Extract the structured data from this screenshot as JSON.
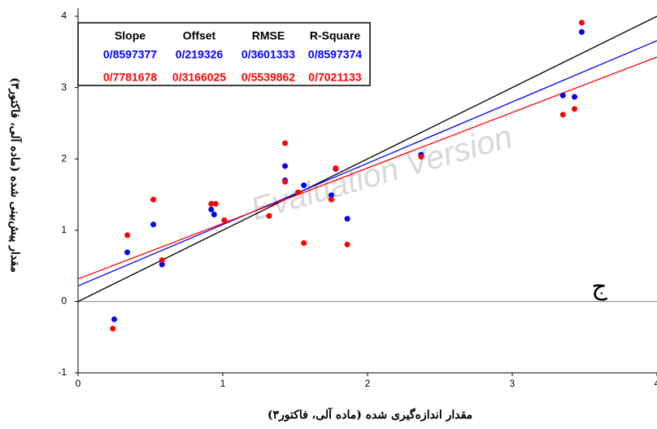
{
  "chart_data": {
    "type": "scatter",
    "x_label": "مقدار اندازه‌گیری شده (ماده آلی، فاکتور۳)",
    "y_label": "مقدار پیش‌بینی شده (ماده آلی، فاکتور۳)",
    "annotation": "ج",
    "watermark": "Evaluation Version",
    "xlim": [
      0,
      4
    ],
    "ylim": [
      -1,
      4
    ],
    "xticks": [
      0,
      1,
      2,
      3,
      4
    ],
    "yticks": [
      -1,
      0,
      1,
      2,
      3,
      4
    ],
    "series": [
      {
        "color": "#0000ff",
        "x": [
          0.25,
          0.34,
          0.52,
          0.58,
          0.92,
          0.94,
          1.43,
          1.43,
          1.56,
          1.75,
          1.78,
          1.86,
          2.37,
          3.35,
          3.43,
          3.48
        ],
        "values": [
          -0.25,
          0.69,
          1.08,
          0.52,
          1.29,
          1.22,
          1.9,
          1.7,
          1.63,
          1.49,
          1.86,
          1.16,
          2.06,
          2.89,
          2.87,
          3.78
        ]
      },
      {
        "color": "#ff0000",
        "x": [
          0.24,
          0.34,
          0.52,
          0.58,
          0.92,
          0.95,
          1.01,
          1.32,
          1.43,
          1.43,
          1.52,
          1.56,
          1.75,
          1.78,
          1.86,
          2.37,
          3.35,
          3.43,
          3.48
        ],
        "values": [
          -0.38,
          0.93,
          1.43,
          0.58,
          1.37,
          1.37,
          1.14,
          1.2,
          2.22,
          1.68,
          1.53,
          0.82,
          1.43,
          1.87,
          0.8,
          2.03,
          2.62,
          2.7,
          3.91
        ]
      }
    ],
    "stats": {
      "columns": [
        "Slope",
        "Offset",
        "RMSE",
        "R-Square"
      ],
      "rows": [
        {
          "color": "#0000ff",
          "values": [
            0.8597377,
            0.219326,
            0.3601333,
            0.8597374
          ],
          "value_labels": [
            "0/8597377",
            "0/219326",
            "0/3601333",
            "0/8597374"
          ]
        },
        {
          "color": "#ff0000",
          "values": [
            0.7781678,
            0.3166025,
            0.5539862,
            0.7021133
          ],
          "value_labels": [
            "0/7781678",
            "0/3166025",
            "0/5539862",
            "0/7021133"
          ]
        }
      ]
    }
  }
}
